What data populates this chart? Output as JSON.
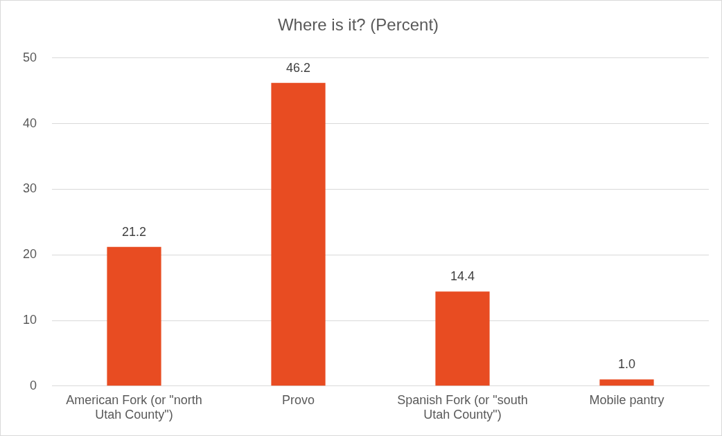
{
  "chart_data": {
    "type": "bar",
    "title": "Where is it? (Percent)",
    "categories": [
      "American Fork (or \"north Utah County\")",
      "Provo",
      "Spanish Fork (or \"south Utah County\")",
      "Mobile pantry"
    ],
    "values": [
      21.2,
      46.2,
      14.4,
      1.0
    ],
    "value_labels": [
      "21.2",
      "46.2",
      "14.4",
      "1.0"
    ],
    "color": "#e84c22",
    "ylim": [
      0,
      50
    ],
    "yticks": [
      0,
      10,
      20,
      30,
      40,
      50
    ],
    "grid": "y",
    "legend": false
  }
}
